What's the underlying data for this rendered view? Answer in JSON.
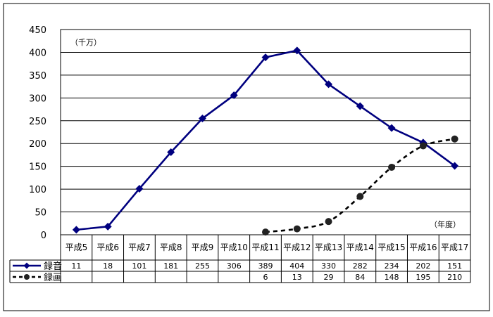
{
  "chart_data": {
    "type": "line",
    "unit_label": "（千万）",
    "x_unit_label": "（年度）",
    "categories": [
      "平成5",
      "平成6",
      "平成7",
      "平成8",
      "平成9",
      "平成10",
      "平成11",
      "平成12",
      "平成13",
      "平成14",
      "平成15",
      "平成16",
      "平成17"
    ],
    "ylim": [
      0,
      450
    ],
    "yticks": [
      0,
      50,
      100,
      150,
      200,
      250,
      300,
      350,
      400,
      450
    ],
    "grid": true,
    "series": [
      {
        "name": "録音",
        "color": "#00007F",
        "style": "solid",
        "marker": "diamond",
        "values": [
          11,
          18,
          101,
          181,
          255,
          306,
          389,
          404,
          330,
          282,
          234,
          202,
          151
        ]
      },
      {
        "name": "録画",
        "color": "#000000",
        "style": "dashed",
        "marker": "circle",
        "values": [
          null,
          null,
          null,
          null,
          null,
          null,
          6,
          13,
          29,
          84,
          148,
          195,
          210
        ]
      }
    ]
  }
}
